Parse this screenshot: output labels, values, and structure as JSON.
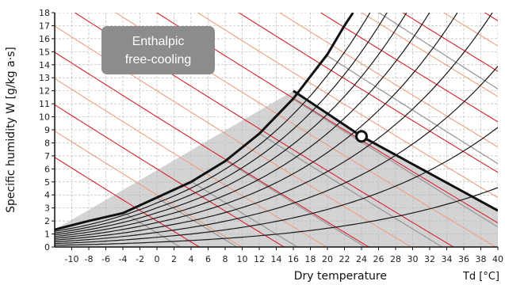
{
  "chart_data": {
    "type": "line",
    "title": "",
    "annotation": [
      "Enthalpic",
      "free-cooling"
    ],
    "xlabel": "Dry temperature",
    "xunit": "Td  [°C]",
    "ylabel": "Specific humidity  W [g/kg a·s]",
    "xlim": [
      -12,
      40
    ],
    "ylim": [
      0,
      18
    ],
    "x_ticks": [
      -10,
      -8,
      -6,
      -4,
      -2,
      0,
      2,
      4,
      6,
      8,
      10,
      12,
      14,
      16,
      18,
      20,
      22,
      24,
      26,
      28,
      30,
      32,
      34,
      36,
      38,
      40
    ],
    "y_ticks": [
      0,
      1,
      2,
      3,
      4,
      5,
      6,
      7,
      8,
      9,
      10,
      11,
      12,
      13,
      14,
      15,
      16,
      17,
      18
    ],
    "grid": true,
    "saturation_curve": [
      [
        -12,
        1.33
      ],
      [
        -8,
        2.0
      ],
      [
        -4,
        2.6
      ],
      [
        0,
        3.8
      ],
      [
        4,
        5.0
      ],
      [
        8,
        6.6
      ],
      [
        12,
        8.7
      ],
      [
        16,
        11.4
      ],
      [
        20,
        14.8
      ],
      [
        22,
        17.0
      ],
      [
        23,
        18.0
      ]
    ],
    "rh_curves_percent": [
      10,
      20,
      30,
      40,
      50,
      60,
      70,
      80,
      90
    ],
    "wetbulb_lines_C": [
      -4,
      0,
      4,
      8,
      12,
      16,
      20,
      24,
      28
    ],
    "enthalpy_lines_kJkg": [
      5,
      10,
      15,
      20,
      25,
      30,
      35,
      40,
      45,
      50,
      55,
      60,
      65,
      70,
      75,
      80,
      85,
      90,
      95,
      100
    ],
    "free_cooling_region": {
      "boundary_points": [
        [
          -12,
          0
        ],
        [
          -12,
          1.33
        ],
        [
          16,
          12.0
        ],
        [
          24,
          8.5
        ],
        [
          40,
          2.8
        ],
        [
          40,
          0
        ]
      ]
    },
    "state_point": {
      "x": 24,
      "y": 8.5
    }
  },
  "colors": {
    "region_fill": "#d3d3d6",
    "saturation": "#111111",
    "rh": "#1a1a1a",
    "wetbulb": "#9a9a9a",
    "enthalpy_major": "#d8232a",
    "enthalpy_minor": "#eda07c",
    "badge": "#8c8c8c",
    "boundary": "#111111"
  }
}
